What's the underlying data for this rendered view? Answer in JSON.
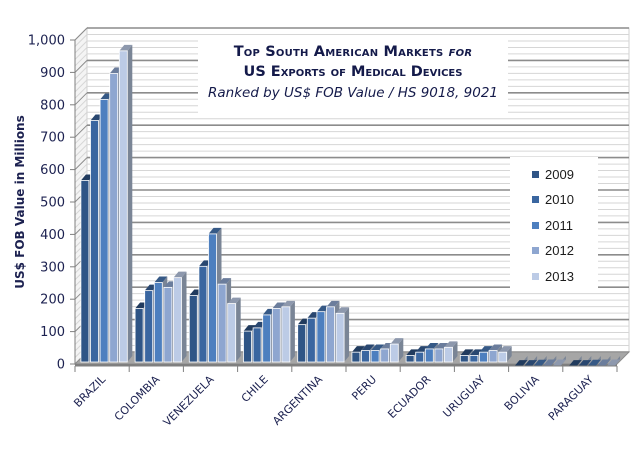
{
  "chart_data": {
    "type": "bar",
    "subtype": "3d-clustered-column",
    "title": "Top South American Markets for",
    "title_italic_word": "for",
    "title_line2": "US Exports of Medical Devices",
    "subtitle": "Ranked by US$ FOB Value / HS 9018, 9021",
    "xlabel": "",
    "ylabel": "US$ FOB Value in Millions",
    "ylim": [
      0,
      1000
    ],
    "yticks": [
      0,
      100,
      200,
      300,
      400,
      500,
      600,
      700,
      800,
      900,
      1000
    ],
    "ytick_labels": [
      "0",
      "100",
      "200",
      "300",
      "400",
      "500",
      "600",
      "700",
      "800",
      "900",
      "1,000"
    ],
    "grid": true,
    "legend_position": "right",
    "categories": [
      "BRAZIL",
      "COLOMBIA",
      "VENEZUELA",
      "CHILE",
      "ARGENTINA",
      "PERU",
      "ECUADOR",
      "URUGUAY",
      "BOLIVIA",
      "PARAGUAY"
    ],
    "series": [
      {
        "name": "2009",
        "color": "#2f5586",
        "values": [
          585,
          190,
          230,
          120,
          140,
          55,
          45,
          45,
          12,
          12
        ]
      },
      {
        "name": "2010",
        "color": "#3a66a0",
        "values": [
          770,
          245,
          320,
          130,
          160,
          60,
          55,
          45,
          12,
          12
        ]
      },
      {
        "name": "2011",
        "color": "#4d7fbf",
        "values": [
          835,
          270,
          420,
          170,
          180,
          60,
          65,
          55,
          13,
          13
        ]
      },
      {
        "name": "2012",
        "color": "#8ea6d0",
        "values": [
          915,
          255,
          265,
          190,
          195,
          65,
          65,
          60,
          14,
          14
        ]
      },
      {
        "name": "2013",
        "color": "#bccbe6",
        "values": [
          985,
          285,
          205,
          195,
          175,
          80,
          70,
          55,
          14,
          14
        ]
      }
    ]
  }
}
